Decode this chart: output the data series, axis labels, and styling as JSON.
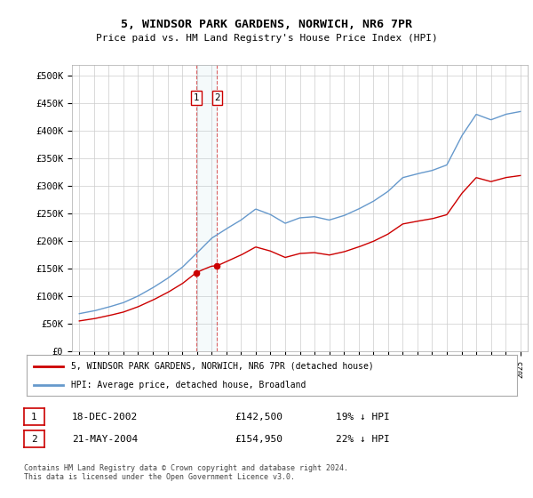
{
  "title": "5, WINDSOR PARK GARDENS, NORWICH, NR6 7PR",
  "subtitle": "Price paid vs. HM Land Registry's House Price Index (HPI)",
  "ylim": [
    0,
    520000
  ],
  "yticks": [
    0,
    50000,
    100000,
    150000,
    200000,
    250000,
    300000,
    350000,
    400000,
    450000,
    500000
  ],
  "ytick_labels": [
    "£0",
    "£50K",
    "£100K",
    "£150K",
    "£200K",
    "£250K",
    "£300K",
    "£350K",
    "£400K",
    "£450K",
    "£500K"
  ],
  "xlim": [
    1994.5,
    2025.5
  ],
  "sale1_date": 2002.96,
  "sale1_price": 142500,
  "sale1_label": "1",
  "sale2_date": 2004.38,
  "sale2_price": 154950,
  "sale2_label": "2",
  "legend_line1": "5, WINDSOR PARK GARDENS, NORWICH, NR6 7PR (detached house)",
  "legend_line2": "HPI: Average price, detached house, Broadland",
  "table_row1": [
    "1",
    "18-DEC-2002",
    "£142,500",
    "19% ↓ HPI"
  ],
  "table_row2": [
    "2",
    "21-MAY-2004",
    "£154,950",
    "22% ↓ HPI"
  ],
  "footer": "Contains HM Land Registry data © Crown copyright and database right 2024.\nThis data is licensed under the Open Government Licence v3.0.",
  "red_color": "#cc0000",
  "blue_color": "#6699cc",
  "background_color": "#ffffff",
  "grid_color": "#cccccc",
  "hpi_years": [
    1995,
    1996,
    1997,
    1998,
    1999,
    2000,
    2001,
    2002,
    2003,
    2004,
    2005,
    2006,
    2007,
    2008,
    2009,
    2010,
    2011,
    2012,
    2013,
    2014,
    2015,
    2016,
    2017,
    2018,
    2019,
    2020,
    2021,
    2022,
    2023,
    2024,
    2025
  ],
  "hpi_values": [
    68000,
    73000,
    80000,
    88000,
    100000,
    115000,
    132000,
    152000,
    178000,
    205000,
    222000,
    238000,
    258000,
    248000,
    232000,
    242000,
    244000,
    238000,
    246000,
    258000,
    272000,
    290000,
    315000,
    322000,
    328000,
    338000,
    390000,
    430000,
    420000,
    430000,
    435000
  ]
}
